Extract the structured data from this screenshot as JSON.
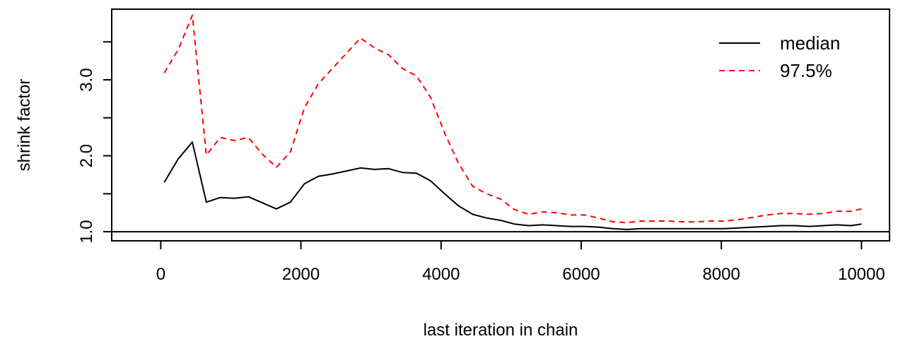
{
  "chart_data": {
    "type": "line",
    "xlabel": "last iteration in chain",
    "ylabel": "shrink factor",
    "xlim": [
      -700,
      10400
    ],
    "ylim": [
      0.88,
      3.93
    ],
    "x_ticks": [
      0,
      2000,
      4000,
      6000,
      8000,
      10000
    ],
    "x_tick_labels": [
      "0",
      "2000",
      "4000",
      "6000",
      "8000",
      "10000"
    ],
    "y_ticks": [
      1.0,
      1.5,
      2.0,
      2.5,
      3.0,
      3.5
    ],
    "y_tick_labels": [
      "1.0",
      "",
      "2.0",
      "",
      "3.0",
      ""
    ],
    "reference_line": 1.0,
    "legend_position": "top-right",
    "x": [
      50,
      250,
      450,
      650,
      850,
      1050,
      1250,
      1450,
      1650,
      1850,
      2050,
      2250,
      2450,
      2650,
      2850,
      3050,
      3250,
      3450,
      3650,
      3850,
      4050,
      4250,
      4450,
      4650,
      4850,
      5050,
      5250,
      5450,
      5650,
      5850,
      6050,
      6250,
      6450,
      6650,
      6850,
      7050,
      7250,
      7450,
      7650,
      7850,
      8050,
      8250,
      8450,
      8650,
      8850,
      9050,
      9250,
      9450,
      9650,
      9850,
      10000
    ],
    "series": [
      {
        "name": "median",
        "color": "#000000",
        "dash": "solid",
        "values": [
          1.65,
          1.96,
          2.18,
          1.39,
          1.45,
          1.44,
          1.46,
          1.38,
          1.3,
          1.39,
          1.63,
          1.73,
          1.76,
          1.8,
          1.84,
          1.82,
          1.83,
          1.78,
          1.77,
          1.67,
          1.5,
          1.34,
          1.23,
          1.18,
          1.15,
          1.1,
          1.08,
          1.09,
          1.08,
          1.07,
          1.07,
          1.06,
          1.04,
          1.03,
          1.04,
          1.04,
          1.04,
          1.04,
          1.04,
          1.04,
          1.04,
          1.05,
          1.06,
          1.07,
          1.08,
          1.08,
          1.07,
          1.08,
          1.09,
          1.08,
          1.1
        ]
      },
      {
        "name": "97.5%",
        "color": "#ff0000",
        "dash": "dashed",
        "values": [
          3.09,
          3.4,
          3.85,
          2.01,
          2.24,
          2.2,
          2.24,
          2.02,
          1.85,
          2.05,
          2.63,
          2.95,
          3.15,
          3.35,
          3.55,
          3.42,
          3.33,
          3.15,
          3.05,
          2.77,
          2.3,
          1.9,
          1.6,
          1.5,
          1.43,
          1.29,
          1.23,
          1.26,
          1.25,
          1.22,
          1.22,
          1.18,
          1.13,
          1.12,
          1.14,
          1.14,
          1.14,
          1.13,
          1.13,
          1.14,
          1.14,
          1.16,
          1.19,
          1.22,
          1.24,
          1.24,
          1.23,
          1.24,
          1.27,
          1.27,
          1.3
        ]
      }
    ]
  }
}
